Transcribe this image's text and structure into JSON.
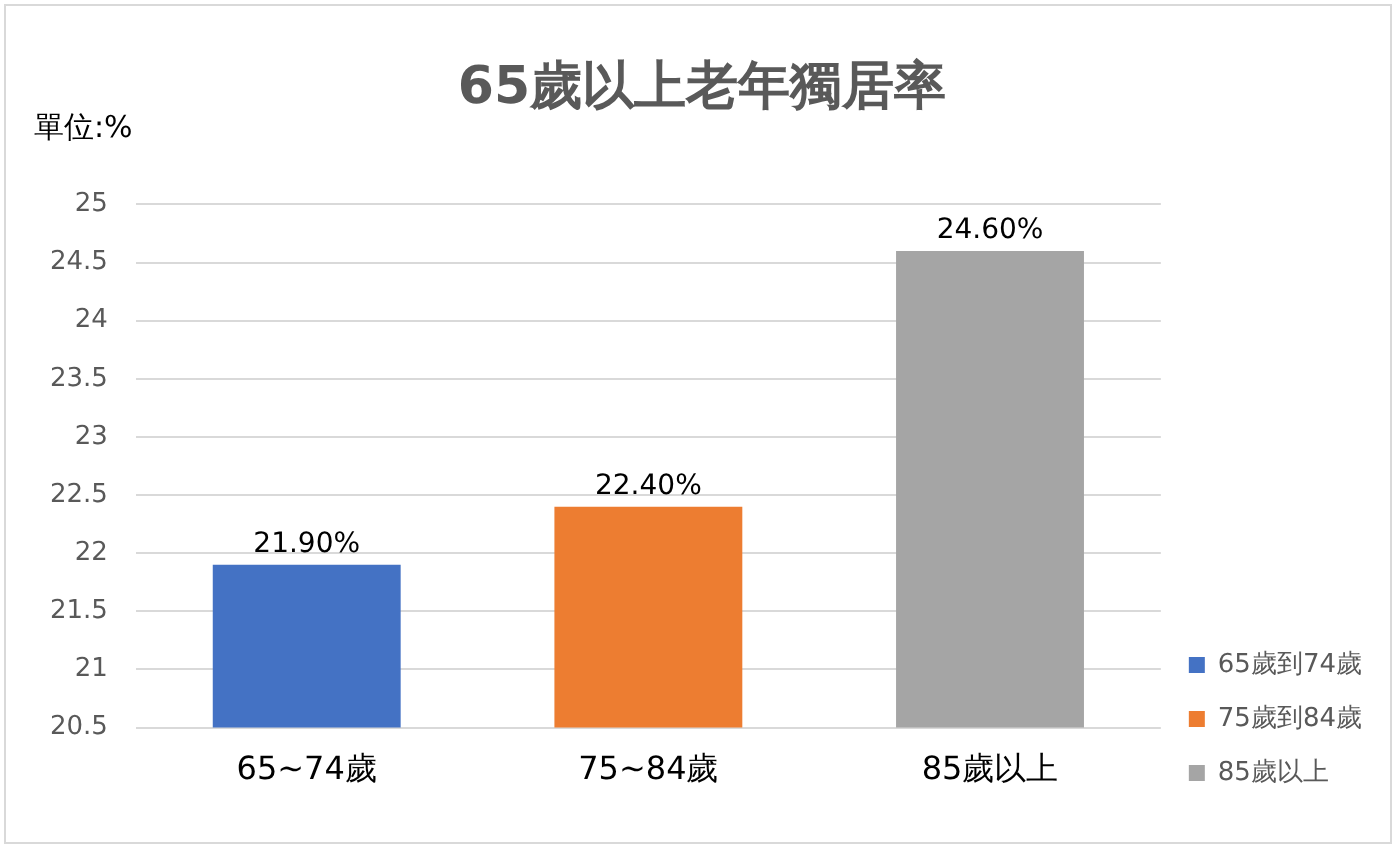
{
  "chart_data": {
    "type": "bar",
    "title": "65歲以上老年獨居率",
    "ylabel": "單位:%",
    "categories": [
      "65~74歲",
      "75~84歲",
      "85歲以上"
    ],
    "series": [
      {
        "name": "65歲到74歲",
        "color": "#4472c4",
        "values": [
          21.9,
          null,
          null
        ],
        "value_labels": [
          "21.90%",
          null,
          null
        ]
      },
      {
        "name": "75歲到84歲",
        "color": "#ed7d31",
        "values": [
          null,
          22.4,
          null
        ],
        "value_labels": [
          null,
          "22.40%",
          null
        ]
      },
      {
        "name": "85歲以上",
        "color": "#a5a5a5",
        "values": [
          null,
          null,
          24.6
        ],
        "value_labels": [
          null,
          null,
          "24.60%"
        ]
      }
    ],
    "ylim": [
      20.5,
      25
    ],
    "yticks": [
      20.5,
      21,
      21.5,
      22,
      22.5,
      23,
      23.5,
      24,
      24.5,
      25
    ],
    "grid": "y",
    "legend": "right"
  }
}
